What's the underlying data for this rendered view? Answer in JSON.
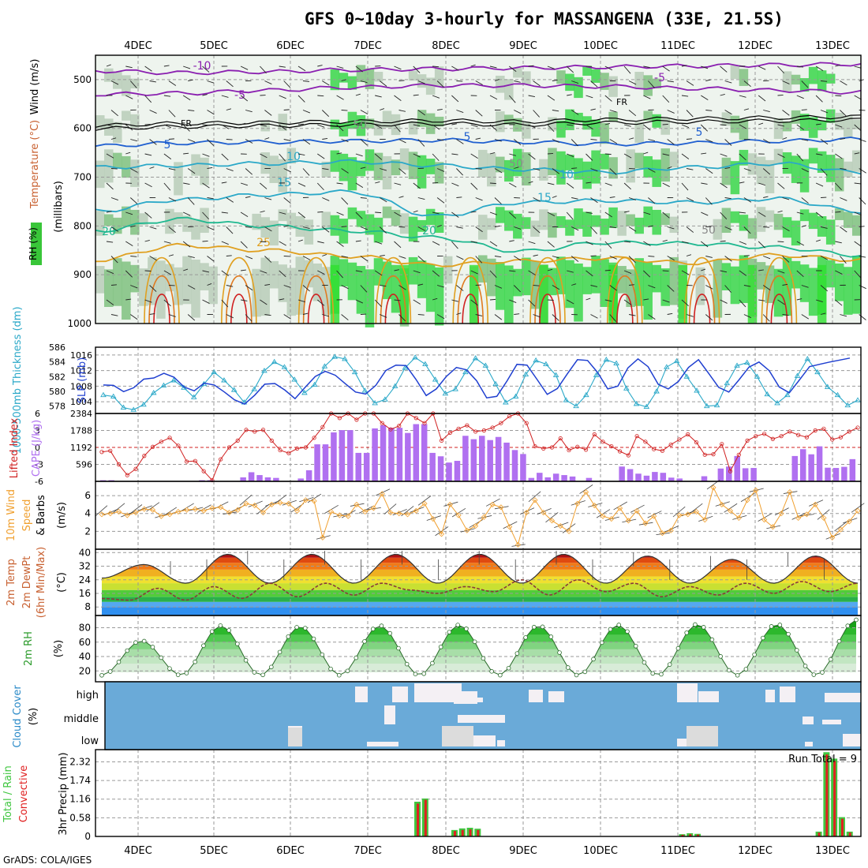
{
  "title": "GFS 0~10day 3-hourly for MASSANGENA (33E, 21.5S)",
  "footer": "GrADS: COLA/IGES",
  "colors": {
    "frame": "#000000",
    "grid": "#9a9a9a",
    "purple": "#8a1fb0",
    "blue": "#1f5fd0",
    "cyan": "#2aa8c8",
    "teal": "#1fb890",
    "orange": "#e0a020",
    "red": "#d02020",
    "rh_green": "#3fc63f",
    "cape": "#b070f0",
    "cloud": "#6aaad8",
    "wind_orange": "#f0a030"
  },
  "chart_data": [
    {
      "type": "heatmap",
      "name": "upper-air-panel",
      "x_dates": [
        "4DEC",
        "5DEC",
        "6DEC",
        "7DEC",
        "8DEC",
        "9DEC",
        "10DEC",
        "11DEC",
        "12DEC",
        "13DEC"
      ],
      "ylabel_parts": [
        "RH (%)",
        "Temperature (°C)",
        "Wind (m/s)"
      ],
      "ylabel": "(millibars)",
      "y_ticks": [
        500,
        600,
        700,
        800,
        900,
        1000
      ],
      "contours": [
        {
          "label": "-10",
          "color": "#8a1fb0",
          "level_mb": [
            482,
            486,
            484,
            480,
            478,
            476,
            474,
            472,
            470,
            468
          ]
        },
        {
          "label": "-5",
          "color": "#8a1fb0",
          "level_mb": [
            530,
            528,
            522,
            516,
            512,
            512,
            514,
            518,
            522,
            526
          ]
        },
        {
          "label": "FR",
          "color": "#000000",
          "level_mb": [
            594,
            590,
            588,
            586,
            584,
            586,
            582,
            580,
            578,
            576
          ]
        },
        {
          "label": "5",
          "color": "#1f5fd0",
          "level_mb": [
            636,
            630,
            628,
            626,
            624,
            628,
            632,
            630,
            626,
            622
          ]
        },
        {
          "label": "10",
          "color": "#2aa8c8",
          "level_mb": [
            680,
            676,
            672,
            668,
            676,
            684,
            690,
            680,
            672,
            690
          ]
        },
        {
          "label": "15",
          "color": "#2aa8c8",
          "level_mb": [
            770,
            746,
            736,
            730,
            780,
            752,
            748,
            752,
            744,
            770
          ]
        },
        {
          "label": "20",
          "color": "#1fb890",
          "level_mb": [
            810,
            786,
            800,
            810,
            824,
            852,
            834,
            836,
            844,
            860
          ]
        },
        {
          "label": "25",
          "color": "#e0a020",
          "level_mb": [
            870,
            840,
            850,
            862,
            880,
            872,
            866,
            876,
            860,
            870
          ]
        }
      ],
      "contour_labels": [
        "-10",
        "-5",
        "-5",
        "FR",
        "FR",
        "5",
        "5",
        "5",
        "10",
        "10",
        "15",
        "15",
        "20",
        "20",
        "25",
        "50",
        "50",
        "50"
      ]
    },
    {
      "type": "line",
      "name": "thickness-slp-panel",
      "ylabel_left": "1000-500mb Thickness (dm)",
      "ylabel_right": "SLP (mb)",
      "left_ticks": [
        578,
        580,
        582,
        584,
        586
      ],
      "right_ticks": [
        1004,
        1008,
        1012,
        1016
      ],
      "series": [
        {
          "name": "thickness",
          "color": "#2aa8c8",
          "axis": "left",
          "values": [
            579.5,
            579.3,
            577.8,
            577.5,
            578.2,
            579.8,
            580.8,
            581.5,
            580.5,
            579.2,
            581.0,
            582.6,
            581.5,
            580.2,
            578.5,
            580.3,
            582.8,
            584.0,
            583.3,
            581.6,
            579.8,
            580.9,
            583.4,
            584.7,
            584.4,
            582.6,
            580.1,
            578.4,
            578.9,
            580.7,
            583.2,
            584.6,
            583.7,
            581.6,
            579.7,
            580.3,
            582.6,
            584.5,
            583.5,
            581.0,
            578.5,
            579.3,
            582.3,
            584.2,
            583.7,
            582.2,
            578.8,
            578.0,
            579.5,
            582.2,
            584.3,
            583.8,
            580.4,
            578.3,
            577.9,
            580.0,
            583.3,
            584.1,
            582.0,
            580.1,
            578.0,
            578.1,
            581.1,
            583.5,
            583.9,
            582.0,
            579.6,
            578.4,
            579.5,
            582.1,
            584.4,
            582.6,
            580.6,
            579.5,
            578.1,
            578.8
          ]
        },
        {
          "name": "slp",
          "color": "#1f3fd0",
          "axis": "right",
          "values": [
            1008.3,
            1008.2,
            1006.6,
            1007.6,
            1009.8,
            1010.1,
            1011.3,
            1010.3,
            1007.8,
            1006.8,
            1008.8,
            1008.3,
            1006.5,
            1004.5,
            1003.4,
            1005.7,
            1008.5,
            1008.7,
            1007.0,
            1004.8,
            1007.7,
            1010.5,
            1011.8,
            1010.8,
            1008.6,
            1006.5,
            1006.0,
            1008.2,
            1012.0,
            1013.4,
            1013.3,
            1009.7,
            1005.6,
            1007.3,
            1010.5,
            1012.8,
            1012.2,
            1009.4,
            1005.0,
            1005.4,
            1009.3,
            1013.6,
            1013.4,
            1009.7,
            1005.9,
            1007.4,
            1011.2,
            1014.8,
            1014.6,
            1011.5,
            1007.3,
            1008.0,
            1012.7,
            1015.0,
            1013.0,
            1008.5,
            1007.3,
            1009.2,
            1012.8,
            1014.8,
            1011.3,
            1007.7,
            1006.5,
            1009.6,
            1012.9,
            1014.2,
            1012.0,
            1007.8,
            1006.3,
            1009.6,
            1013.0,
            1013.6,
            1014.2,
            1014.7,
            1015.2
          ]
        }
      ]
    },
    {
      "type": "bar",
      "name": "li-cape-panel",
      "ylabel_left": "Lifted Index",
      "ylabel_right": "CAPE (J/kg)",
      "left_ticks": [
        -6,
        -3,
        0,
        3,
        6
      ],
      "left_tick_labels": [
        "6",
        "3",
        "0",
        "-3",
        "-6"
      ],
      "right_ticks": [
        596,
        1192,
        1788,
        2384
      ],
      "cape_values": [
        40,
        40,
        0,
        0,
        0,
        0,
        0,
        0,
        0,
        0,
        0,
        0,
        40,
        40,
        0,
        0,
        0,
        140,
        320,
        220,
        140,
        120,
        0,
        0,
        100,
        390,
        1300,
        1300,
        1720,
        1800,
        1800,
        1000,
        1000,
        1860,
        1970,
        1880,
        1880,
        1700,
        2010,
        2010,
        1000,
        880,
        660,
        720,
        1600,
        1480,
        1600,
        1450,
        1560,
        1360,
        1100,
        960,
        120,
        300,
        140,
        270,
        220,
        170,
        0,
        120,
        0,
        0,
        0,
        520,
        430,
        270,
        200,
        330,
        300,
        130,
        100,
        0,
        0,
        180,
        0,
        450,
        520,
        890,
        460,
        470,
        0,
        0,
        0,
        0,
        890,
        1130,
        950,
        1230,
        480,
        470,
        510,
        780
      ],
      "li_values": [
        -0.8,
        -0.6,
        -3.0,
        -4.9,
        -3.8,
        -1.5,
        0.1,
        1.0,
        1.7,
        0.3,
        -2.5,
        -2.4,
        -4.2,
        -5.8,
        -2.1,
        0.0,
        1.2,
        3.1,
        2.8,
        3.1,
        1.2,
        -0.5,
        -1.0,
        -0.2,
        0.0,
        1.7,
        3.6,
        6.0,
        5.2,
        6.0,
        4.9,
        6.0,
        6.0,
        4.3,
        3.2,
        3.8,
        6.0,
        5.2,
        4.3,
        6.0,
        1.2,
        2.6,
        3.3,
        3.9,
        2.8,
        3.0,
        3.5,
        4.3,
        5.5,
        6.0,
        4.3,
        0.2,
        -0.2,
        0.0,
        1.6,
        -0.5,
        0.1,
        -0.4,
        2.3,
        1.0,
        0.2,
        -0.7,
        -1.4,
        2.0,
        1.0,
        -0.3,
        -0.6,
        0.5,
        1.4,
        2.3,
        0.9,
        -1.3,
        -1.2,
        0.6,
        -4.2,
        -1.3,
        1.2,
        2.0,
        2.4,
        1.5,
        2.0,
        2.8,
        2.2,
        1.8,
        3.0,
        3.3,
        1.4,
        1.8,
        2.8,
        3.5
      ]
    },
    {
      "type": "line",
      "name": "wind10m-panel",
      "ylabel_parts": [
        "10m Wind",
        "Speed",
        "& Barbs"
      ],
      "ylabel": "(m/s)",
      "y_ticks": [
        2,
        4,
        6
      ],
      "series": [
        {
          "name": "speed",
          "color": "#f0a030",
          "values": [
            3.9,
            4.0,
            4.2,
            3.8,
            4.1,
            4.5,
            4.4,
            3.7,
            3.9,
            4.2,
            4.4,
            4.5,
            4.3,
            4.6,
            4.7,
            4.1,
            4.4,
            5.1,
            4.9,
            4.1,
            5.0,
            5.2,
            5.1,
            4.3,
            5.5,
            5.4,
            1.3,
            4.2,
            3.8,
            3.7,
            5.0,
            4.2,
            4.6,
            6.2,
            4.1,
            4.0,
            3.9,
            4.3,
            5.1,
            3.4,
            1.7,
            5.0,
            3.8,
            2.1,
            2.6,
            3.6,
            5.0,
            4.7,
            2.5,
            0.5,
            4.1,
            5.5,
            4.1,
            3.2,
            2.6,
            2.0,
            5.1,
            6.4,
            4.9,
            3.7,
            3.4,
            4.6,
            3.2,
            4.3,
            2.9,
            3.7,
            1.8,
            2.1,
            3.8,
            3.9,
            4.2,
            3.3,
            6.9,
            5.0,
            4.3,
            3.5,
            5.5,
            6.6,
            3.3,
            2.5,
            4.0,
            6.4,
            3.5,
            3.9,
            5.0,
            3.5,
            1.3,
            2.2,
            3.1,
            4.3
          ]
        }
      ]
    },
    {
      "type": "area",
      "name": "temp-panel",
      "ylabel_parts": [
        "2m Temp",
        "2m DewPt",
        "(6hr Min/Max)"
      ],
      "ylabel": "(°C)",
      "y_ticks": [
        8,
        16,
        24,
        32,
        40
      ],
      "temp_peaks": [
        33,
        39,
        39,
        39,
        39,
        39,
        38,
        36,
        38
      ],
      "temp_min": 22,
      "dewpoint": [
        13,
        12,
        19,
        12,
        20,
        13,
        22,
        14,
        22,
        15,
        22,
        18,
        16,
        20,
        17,
        24,
        15,
        24,
        17,
        22,
        14,
        20,
        15,
        22,
        16,
        23,
        17,
        22
      ]
    },
    {
      "type": "area",
      "name": "rh2m-panel",
      "ylabel": "2m RH",
      "yunit": "(%)",
      "y_ticks": [
        20,
        40,
        60,
        80
      ],
      "peaks": [
        62,
        83,
        82,
        83,
        84,
        83,
        84,
        85,
        85,
        91
      ],
      "minimum": 14
    },
    {
      "type": "heatmap",
      "name": "cloud-panel",
      "ylabel": "Cloud Cover",
      "yunit": "(%)",
      "levels": [
        "high",
        "middle",
        "low"
      ]
    },
    {
      "type": "bar",
      "name": "precip-panel",
      "ylabel_parts": [
        "Total / Rain",
        "Convective"
      ],
      "ylabel": "3hr Precip (mm)",
      "y_ticks": [
        0,
        0.58,
        1.16,
        1.74,
        2.32
      ],
      "y_tick_labels": [
        "0",
        "0.58",
        "1.16",
        "1.74",
        "2.32"
      ],
      "note": "Run Total = 9",
      "bars": [
        {
          "date_index": 3.62,
          "total": 1.08,
          "conv": 1.02
        },
        {
          "date_index": 3.72,
          "total": 1.18,
          "conv": 1.14
        },
        {
          "date_index": 4.1,
          "total": 0.2,
          "conv": 0.17
        },
        {
          "date_index": 4.2,
          "total": 0.25,
          "conv": 0.2
        },
        {
          "date_index": 4.3,
          "total": 0.27,
          "conv": 0.22
        },
        {
          "date_index": 4.4,
          "total": 0.24,
          "conv": 0.2
        },
        {
          "date_index": 7.05,
          "total": 0.07,
          "conv": 0.05
        },
        {
          "date_index": 7.15,
          "total": 0.1,
          "conv": 0.07
        },
        {
          "date_index": 7.25,
          "total": 0.08,
          "conv": 0.06
        },
        {
          "date_index": 8.82,
          "total": 0.15,
          "conv": 0.12
        },
        {
          "date_index": 8.92,
          "total": 2.62,
          "conv": 2.55
        },
        {
          "date_index": 9.02,
          "total": 2.42,
          "conv": 2.35
        },
        {
          "date_index": 9.12,
          "total": 0.6,
          "conv": 0.55
        },
        {
          "date_index": 9.22,
          "total": 0.15,
          "conv": 0.12
        }
      ]
    }
  ]
}
